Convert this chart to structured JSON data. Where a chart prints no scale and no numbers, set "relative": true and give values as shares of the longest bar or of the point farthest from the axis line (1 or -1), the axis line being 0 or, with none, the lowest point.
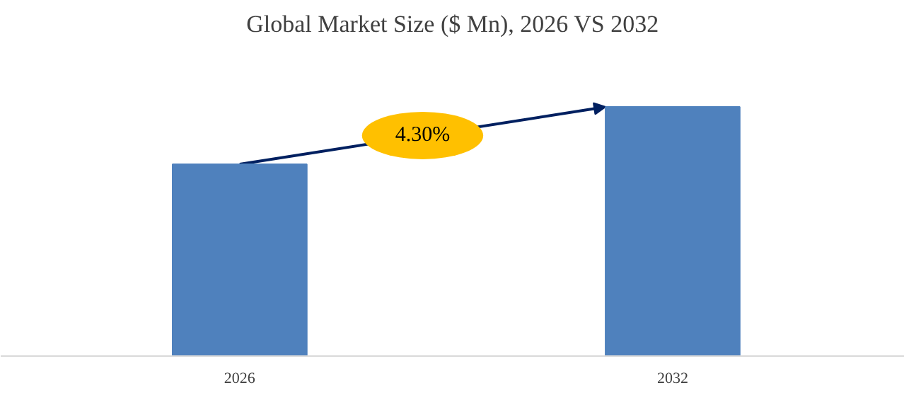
{
  "chart_data": {
    "type": "bar",
    "title": "Global Market Size ($ Mn), 2026 VS 2032",
    "categories": [
      "2026",
      "2032"
    ],
    "values": [
      0.77,
      1
    ],
    "relative": true,
    "color": "#4f81bd",
    "annotations": [
      "4.30%"
    ]
  }
}
